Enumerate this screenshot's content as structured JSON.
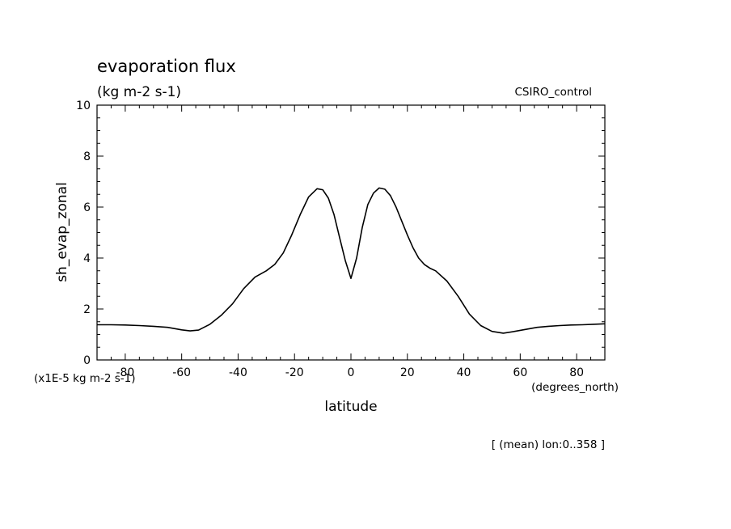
{
  "chart_data": {
    "type": "line",
    "title": "evaporation flux",
    "subtitle": "(kg m-2 s-1)",
    "dataset_label": "CSIRO_control",
    "ylabel": "sh_evap_zonal",
    "yunits": "(x1E-5 kg m-2 s-1)",
    "xlabel": "latitude",
    "xunits": "(degrees_north)",
    "footnote": "[ (mean) lon:0..358 ]",
    "xlim": [
      -90,
      90
    ],
    "ylim": [
      0,
      10
    ],
    "x_ticks": [
      "-80",
      "-60",
      "-40",
      "-20",
      "0",
      "20",
      "40",
      "60",
      "80"
    ],
    "y_ticks": [
      "0",
      "2",
      "4",
      "6",
      "8",
      "10"
    ],
    "grid": false,
    "series": [
      {
        "x": [
          -90,
          -85,
          -80,
          -75,
          -70,
          -65,
          -60,
          -57,
          -54,
          -50,
          -46,
          -42,
          -38,
          -34,
          -30,
          -27,
          -24,
          -21,
          -18,
          -15,
          -12,
          -10,
          -8,
          -6,
          -4,
          -2,
          0,
          2,
          4,
          6,
          8,
          10,
          12,
          14,
          16,
          18,
          20,
          22,
          24,
          26,
          28,
          30,
          34,
          38,
          42,
          46,
          50,
          54,
          58,
          62,
          66,
          70,
          74,
          78,
          82,
          86,
          90
        ],
        "y": [
          1.38,
          1.38,
          1.37,
          1.35,
          1.32,
          1.28,
          1.18,
          1.14,
          1.17,
          1.4,
          1.75,
          2.2,
          2.8,
          3.25,
          3.5,
          3.75,
          4.2,
          4.9,
          5.7,
          6.4,
          6.72,
          6.68,
          6.35,
          5.7,
          4.8,
          3.9,
          3.2,
          4.0,
          5.2,
          6.1,
          6.55,
          6.75,
          6.7,
          6.45,
          6.0,
          5.45,
          4.9,
          4.4,
          4.0,
          3.75,
          3.6,
          3.5,
          3.1,
          2.5,
          1.8,
          1.35,
          1.12,
          1.05,
          1.12,
          1.2,
          1.28,
          1.32,
          1.35,
          1.37,
          1.38,
          1.4,
          1.42
        ]
      }
    ]
  }
}
